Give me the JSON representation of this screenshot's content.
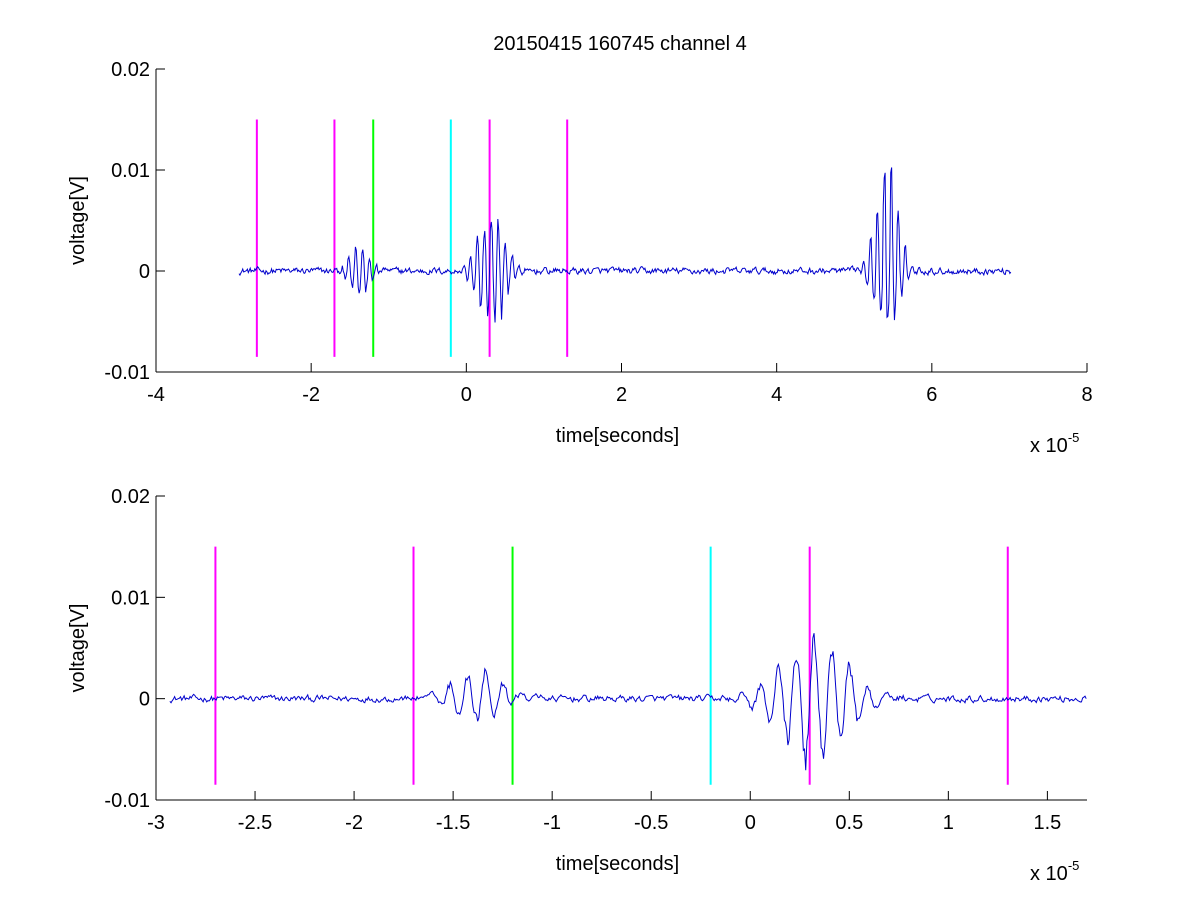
{
  "title": "20150415 160745 channel 4",
  "colors": {
    "signal": "#0000cc",
    "magenta": "#ff00ff",
    "green": "#00ff00",
    "cyan": "#00ffff",
    "axes": "#000000",
    "background": "#ffffff"
  },
  "chart_data": [
    {
      "type": "line",
      "title": "20150415 160745 channel 4",
      "xlabel": "time[seconds]",
      "ylabel": "voltage[V]",
      "x_exponent_label": "x 10",
      "x_exponent": "-5",
      "xlim": [
        -4,
        8
      ],
      "ylim": [
        -0.01,
        0.02
      ],
      "xticks": [
        "-4",
        "-2",
        "0",
        "2",
        "4",
        "6",
        "8"
      ],
      "yticks": [
        "-0.01",
        "0",
        "0.01",
        "0.02"
      ],
      "grid": false,
      "box": "open-left-bottom",
      "signal": {
        "color": "#0000cc",
        "x_range": [
          -2.93,
          7.02
        ],
        "bursts": [
          {
            "center": -1.38,
            "width": 0.12,
            "peak": 0.0033,
            "trough": -0.0027
          },
          {
            "center": 0.32,
            "width": 0.16,
            "peak": 0.0071,
            "trough": -0.0075
          },
          {
            "center": 5.42,
            "width": 0.14,
            "peak": 0.0137,
            "trough": -0.0072
          }
        ]
      },
      "markers": [
        {
          "x": -2.7,
          "color": "#ff00ff",
          "y_top": 0.015,
          "y_bottom": -0.0085
        },
        {
          "x": -1.7,
          "color": "#ff00ff",
          "y_top": 0.015,
          "y_bottom": -0.0085
        },
        {
          "x": -1.2,
          "color": "#00ff00",
          "y_top": 0.015,
          "y_bottom": -0.0085
        },
        {
          "x": -0.2,
          "color": "#00ffff",
          "y_top": 0.015,
          "y_bottom": -0.0085
        },
        {
          "x": 0.3,
          "color": "#ff00ff",
          "y_top": 0.015,
          "y_bottom": -0.0085
        },
        {
          "x": 1.3,
          "color": "#ff00ff",
          "y_top": 0.015,
          "y_bottom": -0.0085
        }
      ]
    },
    {
      "type": "line",
      "xlabel": "time[seconds]",
      "ylabel": "voltage[V]",
      "x_exponent_label": "x 10",
      "x_exponent": "-5",
      "xlim": [
        -3,
        1.7
      ],
      "ylim": [
        -0.01,
        0.02
      ],
      "xticks": [
        "-3",
        "-2.5",
        "-2",
        "-1.5",
        "-1",
        "-0.5",
        "0",
        "0.5",
        "1",
        "1.5"
      ],
      "yticks": [
        "-0.01",
        "0",
        "0.01",
        "0.02"
      ],
      "grid": false,
      "box": "open-left-bottom",
      "signal": {
        "color": "#0000cc",
        "x_range": [
          -2.93,
          1.7
        ],
        "bursts": [
          {
            "center": -1.38,
            "width": 0.12,
            "peak": 0.0033,
            "trough": -0.0027
          },
          {
            "center": 0.32,
            "width": 0.16,
            "peak": 0.0071,
            "trough": -0.0075
          }
        ]
      },
      "markers": [
        {
          "x": -2.7,
          "color": "#ff00ff",
          "y_top": 0.015,
          "y_bottom": -0.0085
        },
        {
          "x": -1.7,
          "color": "#ff00ff",
          "y_top": 0.015,
          "y_bottom": -0.0085
        },
        {
          "x": -1.2,
          "color": "#00ff00",
          "y_top": 0.015,
          "y_bottom": -0.0085
        },
        {
          "x": -0.2,
          "color": "#00ffff",
          "y_top": 0.015,
          "y_bottom": -0.0085
        },
        {
          "x": 0.3,
          "color": "#ff00ff",
          "y_top": 0.015,
          "y_bottom": -0.0085
        },
        {
          "x": 1.3,
          "color": "#ff00ff",
          "y_top": 0.015,
          "y_bottom": -0.0085
        }
      ]
    }
  ]
}
